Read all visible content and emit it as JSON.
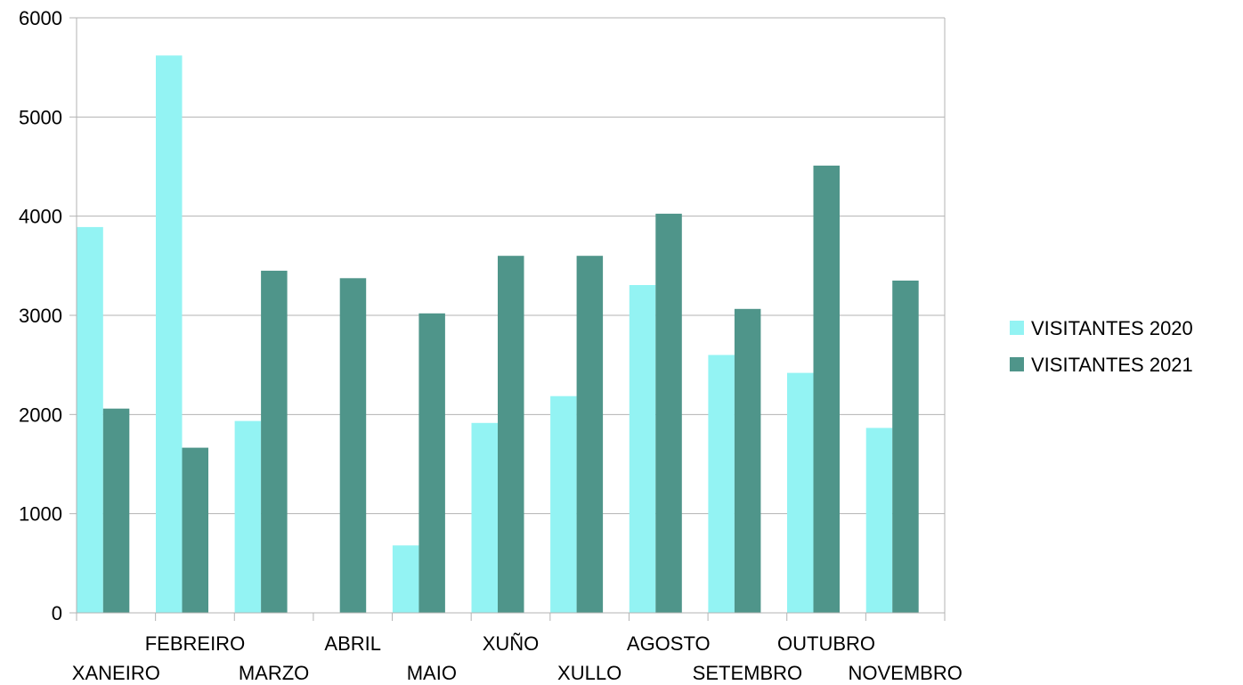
{
  "chart_data": {
    "type": "bar",
    "categories": [
      "XANEIRO",
      "FEBREIRO",
      "MARZO",
      "ABRIL",
      "MAIO",
      "XUÑO",
      "XULLO",
      "AGOSTO",
      "SETEMBRO",
      "OUTUBRO",
      "NOVEMBRO"
    ],
    "series": [
      {
        "name": "VISITANTES 2020",
        "color": "#93f3f3",
        "values": [
          3890,
          5620,
          1935,
          0,
          680,
          1915,
          2185,
          3305,
          2600,
          2420,
          1865
        ]
      },
      {
        "name": "VISITANTES 2021",
        "color": "#4f958a",
        "values": [
          2060,
          1665,
          3450,
          3375,
          3020,
          3600,
          3600,
          4025,
          3065,
          4510,
          3350
        ]
      }
    ],
    "yticks": [
      "0",
      "1000",
      "2000",
      "3000",
      "4000",
      "5000",
      "6000"
    ],
    "ylim": [
      0,
      6000
    ],
    "grid": true,
    "legend_position": "right",
    "gridline_color": "#b3b3b3"
  }
}
